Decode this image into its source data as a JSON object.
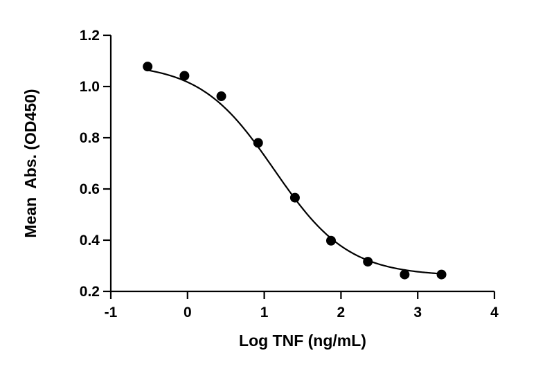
{
  "chart_data": {
    "type": "scatter",
    "xlabel": "Log TNF (ng/mL)",
    "ylabel": "Mean  Abs. (OD450)",
    "xlim": [
      -1,
      4
    ],
    "ylim": [
      0.2,
      1.2
    ],
    "x_ticks": [
      -1,
      0,
      1,
      2,
      3,
      4
    ],
    "x_tick_labels": [
      "-1",
      "0",
      "1",
      "2",
      "3",
      "4"
    ],
    "y_ticks": [
      0.2,
      0.4,
      0.6,
      0.8,
      1.0,
      1.2
    ],
    "y_tick_labels": [
      "0.2",
      "0.4",
      "0.6",
      "0.8",
      "1.0",
      "1.2"
    ],
    "grid": false,
    "series": [
      {
        "marker": "circle",
        "color": "#000000",
        "x": [
          -0.52,
          -0.04,
          0.44,
          0.92,
          1.4,
          1.87,
          2.35,
          2.83,
          3.31
        ],
        "y": [
          1.078,
          1.042,
          0.962,
          0.78,
          0.566,
          0.398,
          0.316,
          0.266,
          0.266
        ]
      }
    ],
    "fit": {
      "model": "4PL",
      "color": "#000000",
      "top": 1.09,
      "bottom": 0.26,
      "log_ec50": 1.13,
      "hill_slope": 0.9
    }
  }
}
